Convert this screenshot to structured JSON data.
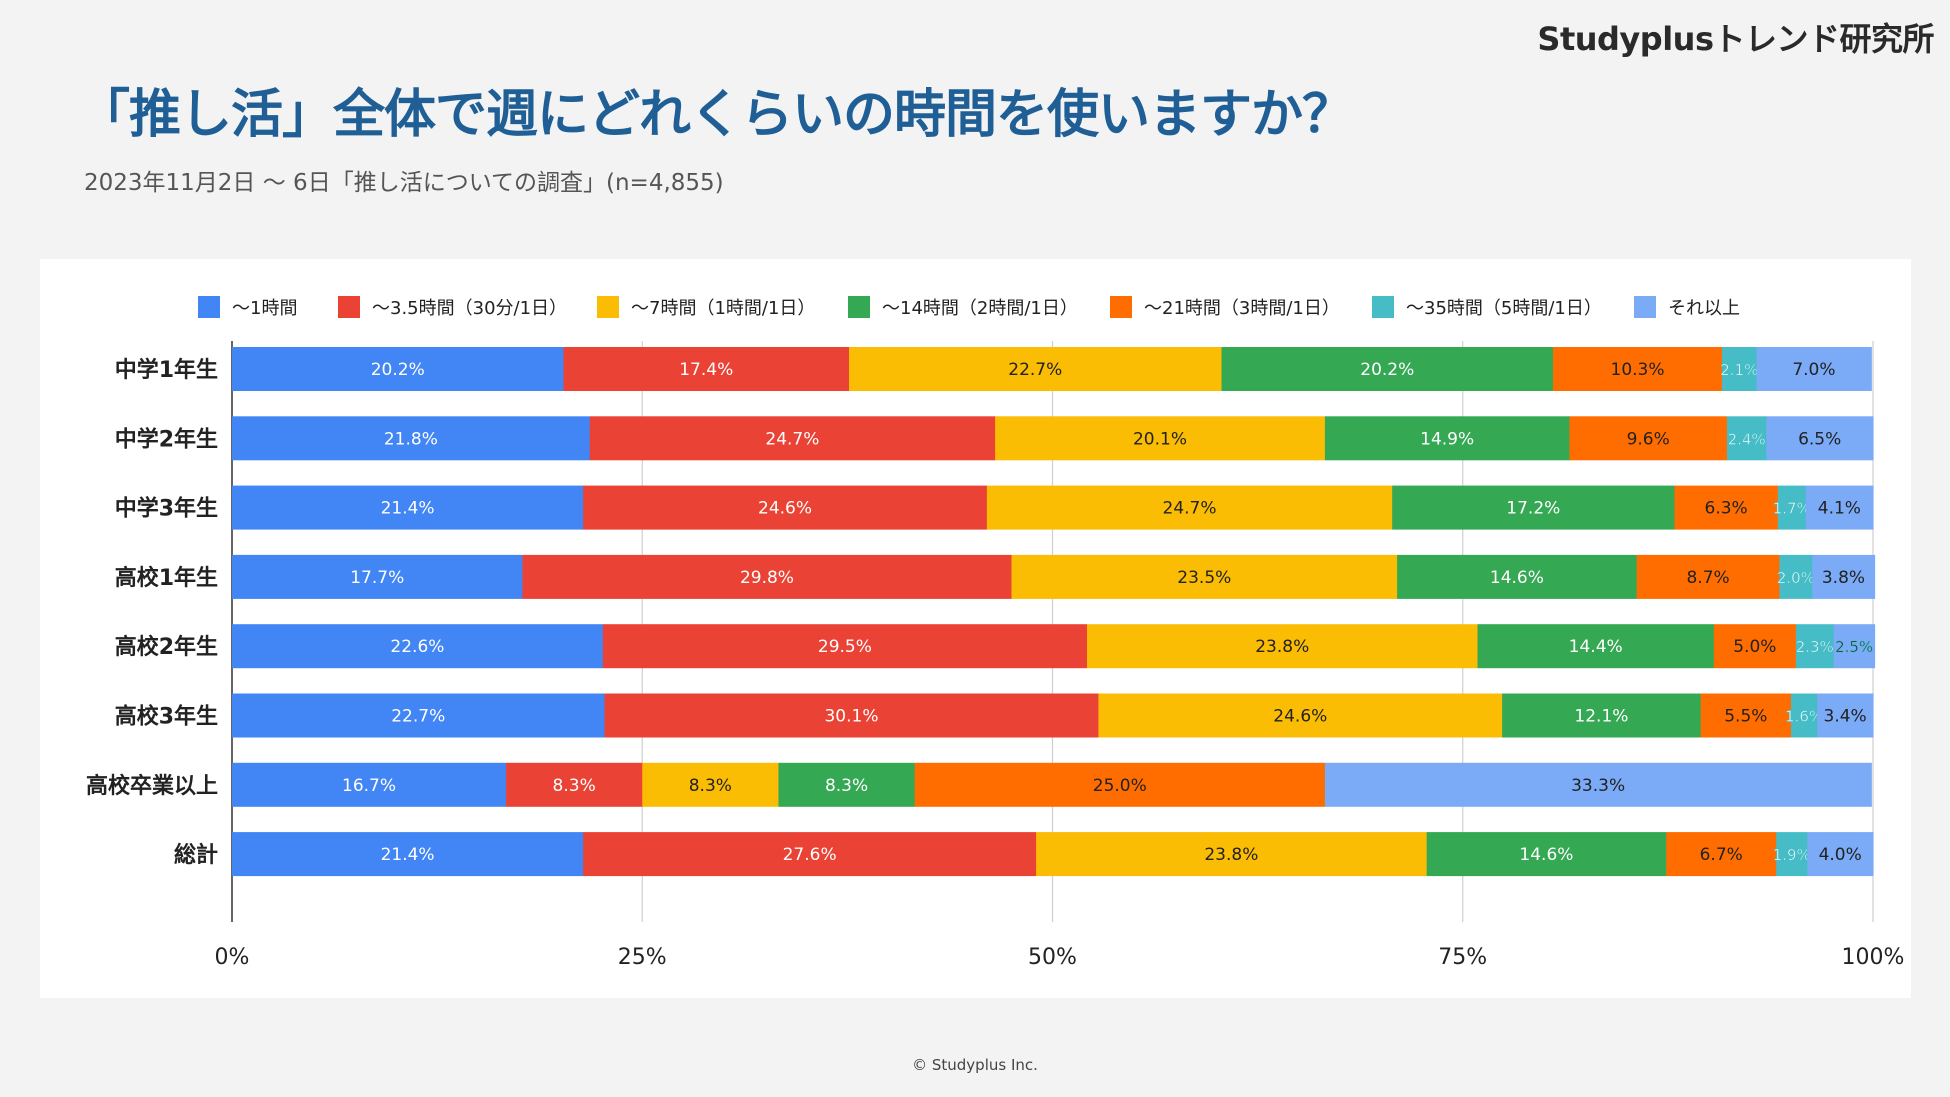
{
  "brand": "Studyplusトレンド研究所",
  "title": "「推し活」全体で週にどれくらいの時間を使いますか？",
  "subtitle": "2023年11月2日 〜 6日「推し活についての調査」(n=4,855)",
  "footer": "© Studyplus Inc.",
  "chart_data": {
    "type": "bar",
    "orientation": "horizontal",
    "stacked": "100%",
    "categories": [
      "中学1年生",
      "中学2年生",
      "中学3年生",
      "高校1年生",
      "高校2年生",
      "高校3年生",
      "高校卒業以上",
      "総計"
    ],
    "series": [
      {
        "name": "〜1時間",
        "color": "#4285f4",
        "label_color": "#ffffff",
        "values": [
          20.2,
          21.8,
          21.4,
          17.7,
          22.6,
          22.7,
          16.7,
          21.4
        ]
      },
      {
        "name": "〜3.5時間（30分/1日）",
        "color": "#ea4335",
        "label_color": "#ffffff",
        "values": [
          17.4,
          24.7,
          24.6,
          29.8,
          29.5,
          30.1,
          8.3,
          27.6
        ]
      },
      {
        "name": "〜7時間（1時間/1日）",
        "color": "#fbbc04",
        "label_color": "#222222",
        "values": [
          22.7,
          20.1,
          24.7,
          23.5,
          23.8,
          24.6,
          8.3,
          23.8
        ]
      },
      {
        "name": "〜14時間（2時間/1日）",
        "color": "#34a853",
        "label_color": "#ffffff",
        "values": [
          20.2,
          14.9,
          17.2,
          14.6,
          14.4,
          12.1,
          8.3,
          14.6
        ]
      },
      {
        "name": "〜21時間（3時間/1日）",
        "color": "#ff6d01",
        "label_color": "#222222",
        "values": [
          10.3,
          9.6,
          6.3,
          8.7,
          5.0,
          5.5,
          25.0,
          6.7
        ]
      },
      {
        "name": "〜35時間（5時間/1日）",
        "color": "#46bdc6",
        "label_color": "#ffffff",
        "values": [
          2.1,
          2.4,
          1.7,
          2.0,
          2.3,
          1.6,
          0,
          1.9
        ]
      },
      {
        "name": "それ以上",
        "color": "#7baaf7",
        "label_color": "#222222",
        "values": [
          7.0,
          6.5,
          4.1,
          3.8,
          2.5,
          3.4,
          33.3,
          4.0
        ]
      }
    ],
    "value_labels": [
      [
        "20.2%",
        "21.8%",
        "21.4%",
        "17.7%",
        "22.6%",
        "22.7%",
        "16.7%",
        "21.4%"
      ],
      [
        "17.4%",
        "24.7%",
        "24.6%",
        "29.8%",
        "29.5%",
        "30.1%",
        "8.3%",
        "27.6%"
      ],
      [
        "22.7%",
        "20.1%",
        "24.7%",
        "23.5%",
        "23.8%",
        "24.6%",
        "8.3%",
        "23.8%"
      ],
      [
        "20.2%",
        "14.9%",
        "17.2%",
        "14.6%",
        "14.4%",
        "12.1%",
        "8.3%",
        "14.6%"
      ],
      [
        "10.3%",
        "9.6%",
        "6.3%",
        "8.7%",
        "5.0%",
        "5.5%",
        "25.0%",
        "6.7%"
      ],
      [
        "2.1%",
        "2.4%",
        "1.7%",
        "2.0%",
        "2.3%",
        "1.6%",
        "",
        "1.9%"
      ],
      [
        "7.0%",
        "6.5%",
        "4.1%",
        "3.8%",
        "2.5%",
        "3.4%",
        "33.3%",
        "4.0%"
      ]
    ],
    "x_ticks": [
      "0%",
      "25%",
      "50%",
      "75%",
      "100%"
    ],
    "xlim": [
      0,
      100
    ],
    "grid": true,
    "legend": "top"
  }
}
